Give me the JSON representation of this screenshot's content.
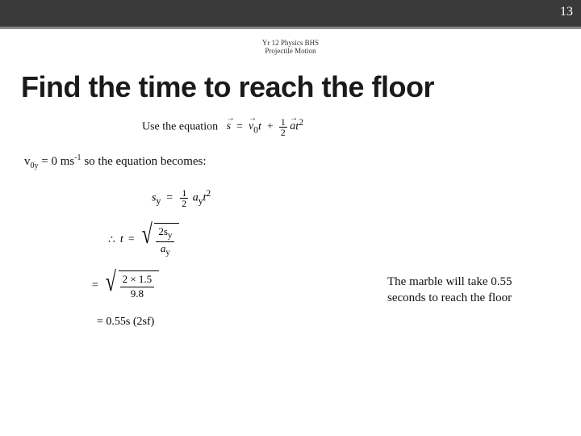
{
  "page_number": "13",
  "header": {
    "line1": "Yr 12 Physics BHS",
    "line2": "Projectile Motion"
  },
  "title": "Find the time to reach the floor",
  "eq_use_prefix": "Use the equation",
  "eq_s": "s",
  "eq_eq": "=",
  "eq_v0": "v",
  "eq_v0_sub": "0",
  "eq_t": "t",
  "eq_plus": "+",
  "eq_half_num": "1",
  "eq_half_den": "2",
  "eq_a": "a",
  "eq_t2": "t",
  "eq_t2_sup": "2",
  "v0y_text_pre": "v",
  "v0y_sub": "0y",
  "v0y_text_mid": " = 0 ms",
  "v0y_sup": "-1",
  "v0y_text_post": " so the equation becomes:",
  "sy_s": "s",
  "sy_sub": "y",
  "sy_eq": "=",
  "sy_half_num": "1",
  "sy_half_den": "2",
  "sy_a": "a",
  "sy_a_sub": "y",
  "sy_t": "t",
  "sy_t_sup": "2",
  "t_therefore": "∴",
  "t_t": "t",
  "t_eq": "=",
  "t_num": "2s",
  "t_num_sub": "y",
  "t_den": "a",
  "t_den_sub": "y",
  "sub_eq": "=",
  "sub_num": "2 × 1.5",
  "sub_den": "9.8",
  "result_eq": "= 0.55s (2sf)",
  "answer": "The marble will take 0.55 seconds to reach the floor",
  "colors": {
    "band_bg": "#3a3a3a",
    "band_border": "#888888",
    "page_bg": "#ffffff",
    "text": "#111111"
  }
}
